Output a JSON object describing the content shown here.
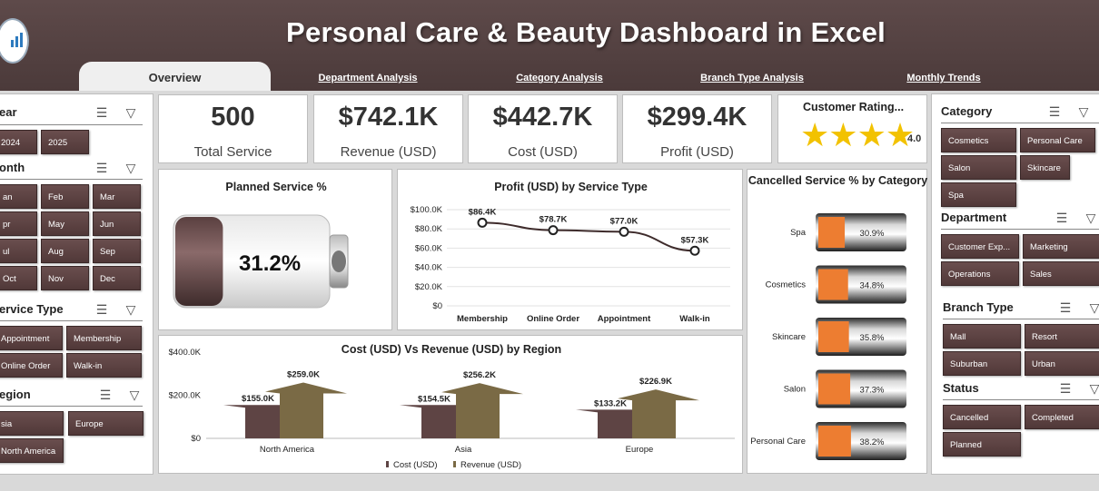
{
  "app": {
    "title": "Personal Care & Beauty Dashboard in Excel",
    "tabs": [
      "Overview",
      "Department Analysis",
      "Category Analysis",
      "Branch Type Analysis",
      "Monthly Trends"
    ],
    "active_tab": "Overview"
  },
  "left_slicers": {
    "year": {
      "title": "ear",
      "items": [
        "2024",
        "2025"
      ]
    },
    "month": {
      "title": "onth",
      "items": [
        "an",
        "Feb",
        "Mar",
        "pr",
        "May",
        "Jun",
        "ul",
        "Aug",
        "Sep",
        "Oct",
        "Nov",
        "Dec"
      ]
    },
    "service_type": {
      "title": "ervice Type",
      "items": [
        "Appointment",
        "Membership",
        "Online Order",
        "Walk-in"
      ]
    },
    "region": {
      "title": "egion",
      "items": [
        "sia",
        "Europe",
        "North America"
      ]
    }
  },
  "kpis": [
    {
      "value": "500",
      "label": "Total Service"
    },
    {
      "value": "$742.1K",
      "label": "Revenue (USD)"
    },
    {
      "value": "$442.7K",
      "label": "Cost (USD)"
    },
    {
      "value": "$299.4K",
      "label": "Profit (USD)"
    }
  ],
  "rating": {
    "title": "Customer Rating...",
    "value": "4.0",
    "stars": 4,
    "max_stars": 5,
    "star_color": "#f2c200"
  },
  "right_slicers": {
    "category": {
      "title": "Category",
      "items": [
        "Cosmetics",
        "Personal Care",
        "Salon",
        "Skincare",
        "Spa"
      ]
    },
    "department": {
      "title": "Department",
      "items": [
        "Customer Exp...",
        "Marketing",
        "Operations",
        "Sales"
      ]
    },
    "branch_type": {
      "title": "Branch Type",
      "items": [
        "Mall",
        "Resort",
        "Suburban",
        "Urban"
      ]
    },
    "status": {
      "title": "Status",
      "items": [
        "Cancelled",
        "Completed",
        "Planned"
      ]
    }
  },
  "planned": {
    "title": "Planned Service %",
    "label": "31.2%",
    "value": 0.312
  },
  "colors": {
    "brown": "#5e4444",
    "olive": "#7a6a45",
    "orange": "#ed7d31",
    "header": "#4b3a3a"
  },
  "chart_data": [
    {
      "type": "line",
      "title": "Profit (USD) by Service Type",
      "categories": [
        "Membership",
        "Online Order",
        "Appointment",
        "Walk-in"
      ],
      "values": [
        86.4,
        78.7,
        77.0,
        57.3
      ],
      "data_labels": [
        "$86.4K",
        "$78.7K",
        "$77.0K",
        "$57.3K"
      ],
      "ylim": [
        0,
        100
      ],
      "y_ticks": [
        "$0",
        "$20.0K",
        "$40.0K",
        "$60.0K",
        "$80.0K",
        "$100.0K"
      ],
      "grid": true
    },
    {
      "type": "bar",
      "title": "Cancelled Service % by Category",
      "categories": [
        "Spa",
        "Cosmetics",
        "Skincare",
        "Salon",
        "Personal Care"
      ],
      "values": [
        30.9,
        34.8,
        35.8,
        37.3,
        38.2
      ],
      "data_labels": [
        "30.9%",
        "34.8%",
        "35.8%",
        "37.3%",
        "38.2%"
      ]
    },
    {
      "type": "bar",
      "title": "Cost (USD) Vs Revenue (USD) by Region",
      "categories": [
        "North America",
        "Asia",
        "Europe"
      ],
      "series": [
        {
          "name": "Cost (USD)",
          "values": [
            155.0,
            154.5,
            133.2
          ],
          "labels": [
            "$155.0K",
            "$154.5K",
            "$133.2K"
          ]
        },
        {
          "name": "Revenue (USD)",
          "values": [
            259.0,
            256.2,
            226.9
          ],
          "labels": [
            "$259.0K",
            "$256.2K",
            "$226.9K"
          ]
        }
      ],
      "ylim": [
        0,
        400
      ],
      "y_ticks": [
        "$0",
        "$200.0K",
        "$400.0K"
      ],
      "legend": "bottom"
    }
  ]
}
